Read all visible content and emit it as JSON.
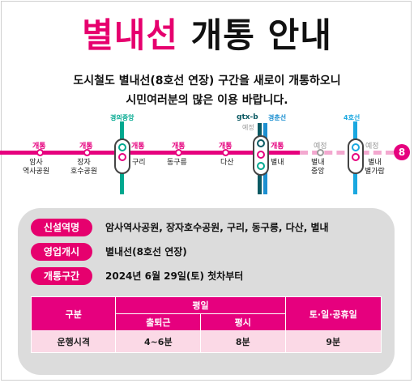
{
  "title": {
    "part1": "별내선",
    "part2": "개통 안내"
  },
  "subtitle": {
    "line1": "도시철도 별내선(8호선 연장) 구간을 새로이 개통하오니",
    "line2": "시민여러분의 많은 이용 바랍니다."
  },
  "colors": {
    "accent": "#e6007e",
    "gyeongui": "#00a88f",
    "gtxb": "#0b5a63",
    "line4": "#1aa8e0",
    "planned_gray": "#9a9a9a"
  },
  "transfer_lines": {
    "gyeongui": "경의중앙",
    "gtxb": "gtx-b",
    "gtxb_status": "예정",
    "gyeongchun": "경춘선",
    "line4": "4호선"
  },
  "stations": [
    {
      "status": "개통",
      "name": "암사\n역사공원"
    },
    {
      "status": "개통",
      "name": "장자\n호수공원"
    },
    {
      "status": "개통",
      "name": "구리"
    },
    {
      "status": "개통",
      "name": "동구릉"
    },
    {
      "status": "개통",
      "name": "다산"
    },
    {
      "status": "개통",
      "name": "별내"
    },
    {
      "status": "예정",
      "name": "별내\n중앙"
    },
    {
      "status": "예정",
      "name": "별내\n별가람"
    }
  ],
  "end_badge": "8",
  "info": {
    "new_stations_label": "신설역명",
    "new_stations_value": "암사역사공원, 장자호수공원, 구리, 동구릉, 다산, 별내",
    "operation_label": "영업개시",
    "operation_value": "별내선(8호선 연장)",
    "section_label": "개통구간",
    "section_value": "2024년 6월 29일(토) 첫차부터"
  },
  "schedule": {
    "header_category": "구분",
    "header_weekday": "평일",
    "header_rush": "출퇴근",
    "header_normal": "평시",
    "header_weekend": "토·일·공휴일",
    "row_label": "운행시격",
    "rush": "4~6분",
    "normal": "8분",
    "weekend": "9분"
  }
}
